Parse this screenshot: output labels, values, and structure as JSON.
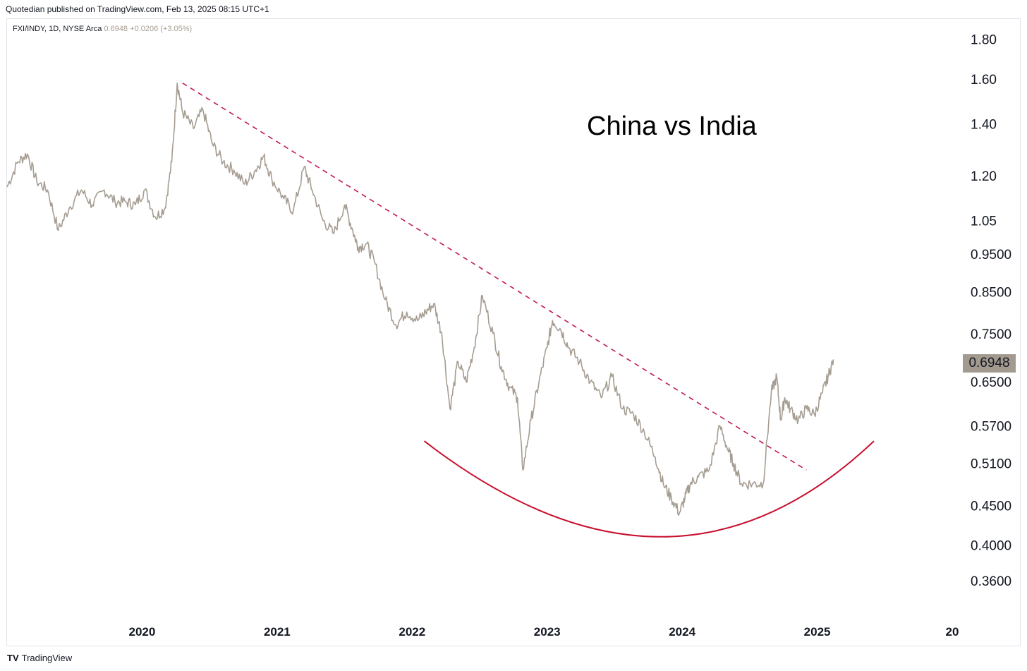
{
  "header": {
    "published": "Quotedian published on TradingView.com, Feb 13, 2025 08:15 UTC+1"
  },
  "symbol": {
    "name": "FXI/INDY, 1D, NYSE Arca",
    "price": "0.6948",
    "change": "+0.0206 (+3.05%)"
  },
  "footer": {
    "logo": "TV",
    "brand": "TradingView"
  },
  "colors": {
    "series": "#a69d92",
    "trendline": "#c2185b",
    "arc": "#c8102e",
    "price_tag": "#a39a8f"
  },
  "chart_data": {
    "type": "line",
    "title": "China vs India",
    "y_scale": "log",
    "ylim": [
      0.34,
      1.86
    ],
    "xlim": [
      2019.0,
      2026.0
    ],
    "y_ticks": [
      "1.80",
      "1.60",
      "1.40",
      "1.20",
      "1.05",
      "0.9500",
      "0.8500",
      "0.7500",
      "0.6500",
      "0.5700",
      "0.5100",
      "0.4500",
      "0.4000",
      "0.3600"
    ],
    "x_ticks": [
      "2020",
      "2021",
      "2022",
      "2023",
      "2024",
      "2025",
      "20"
    ],
    "last_value_label": "0.6948",
    "series": [
      {
        "x": [
          2019.0,
          2019.08,
          2019.15,
          2019.22,
          2019.3,
          2019.38,
          2019.46,
          2019.55,
          2019.63,
          2019.72,
          2019.8,
          2019.88,
          2019.95,
          2020.02,
          2020.1,
          2020.17,
          2020.22,
          2020.26,
          2020.3,
          2020.38,
          2020.45,
          2020.52,
          2020.6,
          2020.68,
          2020.76,
          2020.84,
          2020.9,
          2020.96,
          2021.05,
          2021.12,
          2021.2,
          2021.26,
          2021.34,
          2021.42,
          2021.5,
          2021.56,
          2021.6,
          2021.66,
          2021.72,
          2021.8,
          2021.88,
          2021.96,
          2022.04,
          2022.1,
          2022.16,
          2022.22,
          2022.28,
          2022.34,
          2022.4,
          2022.46,
          2022.52,
          2022.6,
          2022.66,
          2022.72,
          2022.78,
          2022.82,
          2022.88,
          2022.94,
          2023.0,
          2023.04,
          2023.1,
          2023.16,
          2023.24,
          2023.32,
          2023.4,
          2023.48,
          2023.56,
          2023.64,
          2023.72,
          2023.8,
          2023.86,
          2023.92,
          2023.98,
          2024.02,
          2024.06,
          2024.12,
          2024.2,
          2024.28,
          2024.34,
          2024.38,
          2024.44,
          2024.52,
          2024.6,
          2024.66,
          2024.7,
          2024.73,
          2024.76,
          2024.8,
          2024.86,
          2024.92,
          2024.98,
          2025.04,
          2025.08,
          2025.12
        ],
        "values": [
          1.16,
          1.25,
          1.28,
          1.18,
          1.15,
          1.02,
          1.09,
          1.15,
          1.1,
          1.15,
          1.11,
          1.11,
          1.1,
          1.15,
          1.06,
          1.09,
          1.25,
          1.58,
          1.45,
          1.38,
          1.46,
          1.32,
          1.25,
          1.22,
          1.17,
          1.22,
          1.27,
          1.19,
          1.12,
          1.08,
          1.23,
          1.15,
          1.05,
          1.01,
          1.1,
          1.02,
          0.97,
          0.98,
          0.93,
          0.83,
          0.77,
          0.8,
          0.78,
          0.8,
          0.82,
          0.75,
          0.6,
          0.69,
          0.65,
          0.72,
          0.84,
          0.75,
          0.68,
          0.64,
          0.62,
          0.5,
          0.58,
          0.65,
          0.72,
          0.78,
          0.76,
          0.72,
          0.69,
          0.65,
          0.62,
          0.66,
          0.6,
          0.59,
          0.56,
          0.52,
          0.48,
          0.46,
          0.44,
          0.46,
          0.48,
          0.49,
          0.5,
          0.57,
          0.53,
          0.51,
          0.48,
          0.48,
          0.48,
          0.63,
          0.66,
          0.58,
          0.62,
          0.6,
          0.58,
          0.6,
          0.59,
          0.63,
          0.66,
          0.6948
        ]
      }
    ],
    "trendline": {
      "x": [
        2020.3,
        2024.92
      ],
      "y": [
        1.58,
        0.5
      ],
      "style": "dashed"
    },
    "arc": {
      "x": [
        2022.09,
        2023.84,
        2025.42
      ],
      "y": [
        0.545,
        0.41,
        0.545
      ],
      "style": "solid"
    }
  }
}
